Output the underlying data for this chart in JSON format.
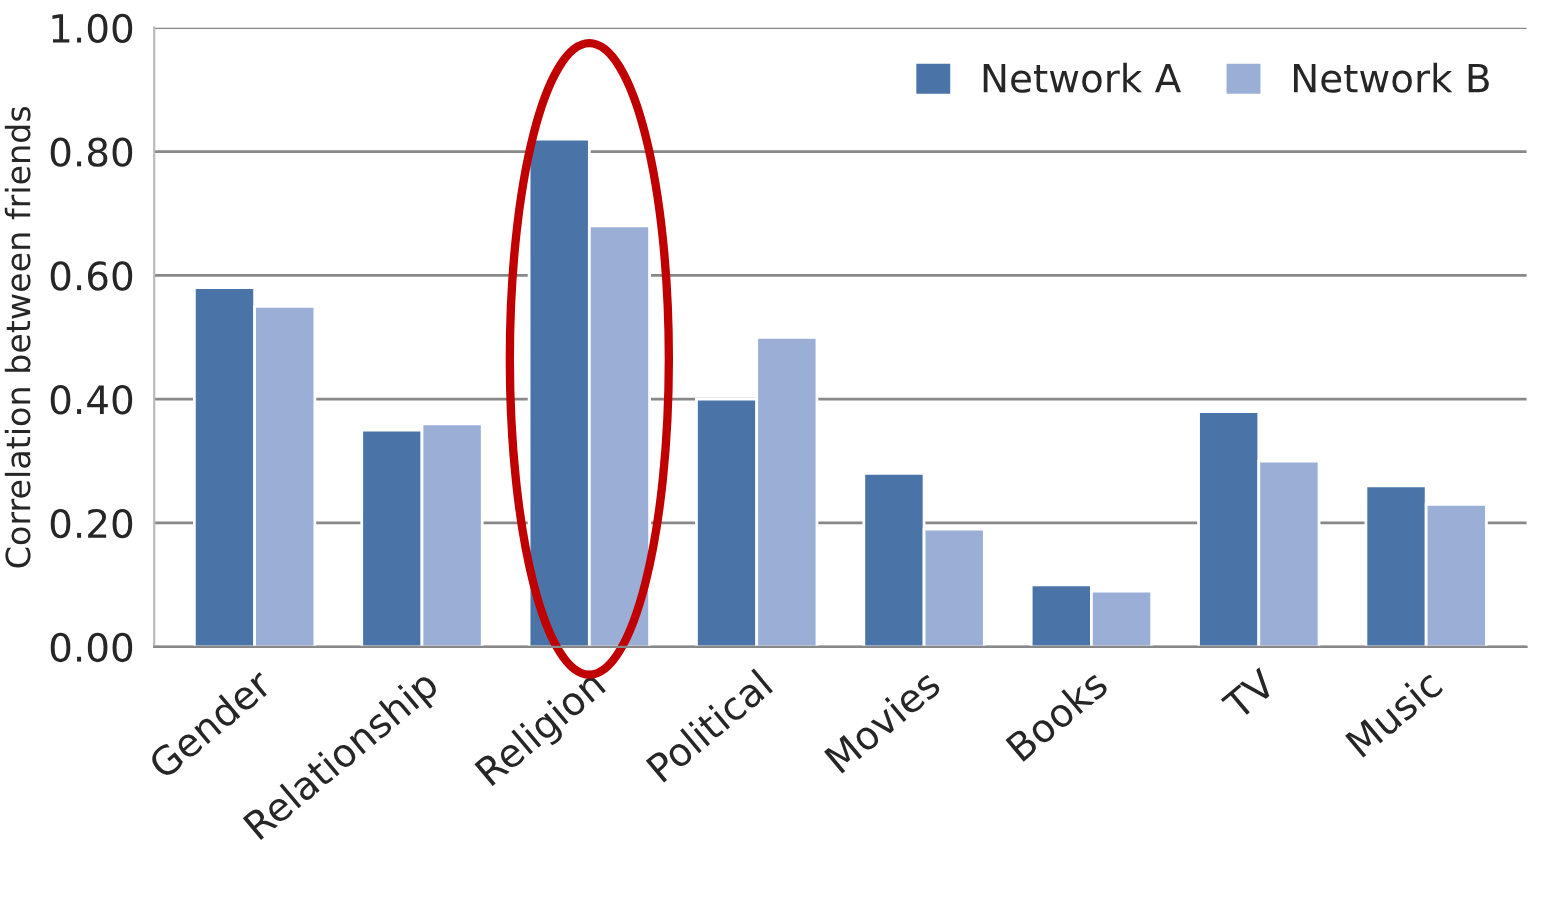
{
  "chart_data": {
    "type": "bar",
    "ylabel": "Correlation between friends",
    "categories": [
      "Gender",
      "Relationship",
      "Religion",
      "Political",
      "Movies",
      "Books",
      "TV",
      "Music"
    ],
    "series": [
      {
        "name": "Network A",
        "color": "#4a74a8",
        "values": [
          0.58,
          0.35,
          0.82,
          0.4,
          0.28,
          0.1,
          0.38,
          0.26
        ]
      },
      {
        "name": "Network B",
        "color": "#9aaed6",
        "values": [
          0.55,
          0.36,
          0.68,
          0.5,
          0.19,
          0.09,
          0.3,
          0.23
        ]
      }
    ],
    "ylim": [
      0,
      1
    ],
    "yticks": [
      {
        "value": 0,
        "label": "0.00"
      },
      {
        "value": 0.2,
        "label": "0.20"
      },
      {
        "value": 0.4,
        "label": "0.40"
      },
      {
        "value": 0.6,
        "label": "0.60"
      },
      {
        "value": 0.8,
        "label": "0.80"
      },
      {
        "value": 1,
        "label": "1.00"
      }
    ],
    "grid": "y",
    "legend": "top right"
  }
}
